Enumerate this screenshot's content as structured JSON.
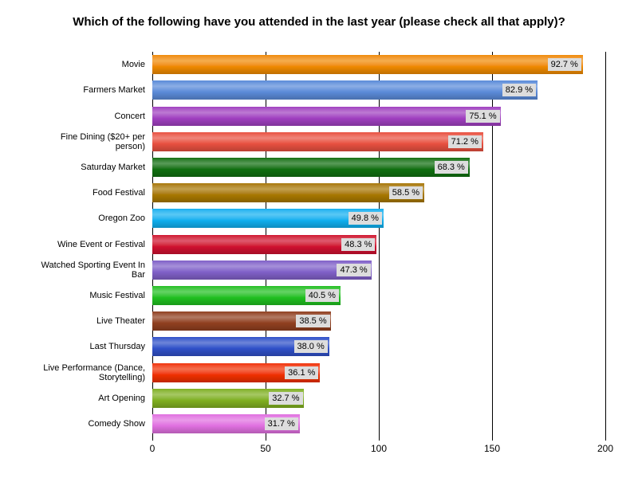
{
  "chart_data": {
    "type": "bar",
    "orientation": "horizontal",
    "title": "Which of the following have you attended in the last year (please check all that apply)?",
    "categories": [
      "Movie",
      "Farmers Market",
      "Concert",
      "Fine Dining ($20+ per person)",
      "Saturday Market",
      "Food Festival",
      "Oregon Zoo",
      "Wine Event or Festival",
      "Watched Sporting Event In Bar",
      "Music Festival",
      "Live Theater",
      "Last Thursday",
      "Live Performance (Dance, Storytelling)",
      "Art Opening",
      "Comedy Show"
    ],
    "values": [
      190,
      170,
      154,
      146,
      140,
      120,
      102,
      99,
      97,
      83,
      79,
      78,
      74,
      67,
      65
    ],
    "data_labels": [
      "92.7 %",
      "82.9 %",
      "75.1 %",
      "71.2 %",
      "68.3 %",
      "58.5 %",
      "49.8 %",
      "48.3 %",
      "47.3 %",
      "40.5 %",
      "38.5 %",
      "38.0 %",
      "36.1 %",
      "32.7 %",
      "31.7 %"
    ],
    "colors": [
      "#f08a00",
      "#5b8bd9",
      "#a040c0",
      "#e85040",
      "#107010",
      "#a87800",
      "#10b0f0",
      "#d01030",
      "#8060c8",
      "#20c020",
      "#904020",
      "#3050c8",
      "#f03000",
      "#80b020",
      "#e070e0"
    ],
    "xlim": [
      0,
      200
    ],
    "xticks": [
      0,
      50,
      100,
      150,
      200
    ],
    "grid": true
  }
}
